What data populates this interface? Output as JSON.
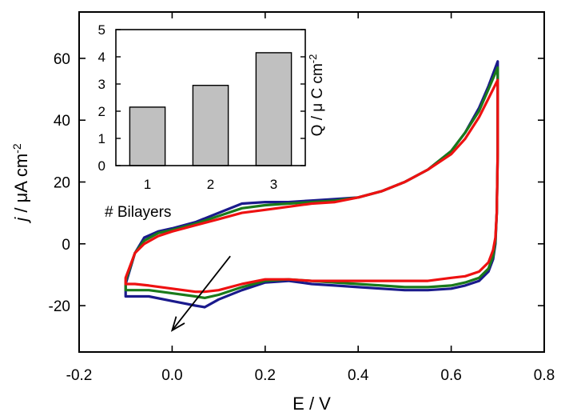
{
  "chart_data": [
    {
      "type": "line",
      "title": "",
      "xlabel": "E / V",
      "ylabel_italic": "j",
      "ylabel_rest": " / μA cm",
      "ylabel_sup": "-2",
      "xlim": [
        -0.2,
        0.8
      ],
      "ylim": [
        -35,
        75
      ],
      "xticks": [
        "-0.2",
        "0.0",
        "0.2",
        "0.4",
        "0.6",
        "0.8"
      ],
      "yticks": [
        "-20",
        "0",
        "20",
        "40",
        "60"
      ],
      "xtick_values": [
        -0.2,
        0.0,
        0.2,
        0.4,
        0.6,
        0.8
      ],
      "ytick_values": [
        -20,
        0,
        20,
        40,
        60
      ],
      "grid": false,
      "colors": {
        "series1": "#1a1a8c",
        "series2": "#1a7a1a",
        "series3": "#ee1111"
      },
      "series": [
        {
          "color": "#1a1a8c",
          "anodic": [
            [
              -0.1,
              -13
            ],
            [
              -0.08,
              -3
            ],
            [
              -0.06,
              2
            ],
            [
              -0.03,
              4
            ],
            [
              0.0,
              5
            ],
            [
              0.05,
              7
            ],
            [
              0.1,
              10
            ],
            [
              0.15,
              13
            ],
            [
              0.2,
              13.5
            ],
            [
              0.25,
              13.5
            ],
            [
              0.3,
              14
            ],
            [
              0.35,
              14.5
            ],
            [
              0.4,
              15
            ],
            [
              0.45,
              17
            ],
            [
              0.5,
              20
            ],
            [
              0.55,
              24
            ],
            [
              0.6,
              30
            ],
            [
              0.63,
              36
            ],
            [
              0.66,
              44
            ],
            [
              0.68,
              51
            ],
            [
              0.7,
              59
            ]
          ],
          "cathodic": [
            [
              0.7,
              59
            ],
            [
              0.7,
              30
            ],
            [
              0.698,
              10
            ],
            [
              0.695,
              0
            ],
            [
              0.69,
              -5
            ],
            [
              0.68,
              -9
            ],
            [
              0.66,
              -12
            ],
            [
              0.63,
              -13.5
            ],
            [
              0.6,
              -14.5
            ],
            [
              0.55,
              -15
            ],
            [
              0.5,
              -15
            ],
            [
              0.45,
              -14.5
            ],
            [
              0.4,
              -14
            ],
            [
              0.35,
              -13.5
            ],
            [
              0.3,
              -13
            ],
            [
              0.25,
              -12
            ],
            [
              0.2,
              -12.5
            ],
            [
              0.15,
              -15
            ],
            [
              0.1,
              -18
            ],
            [
              0.07,
              -20.5
            ],
            [
              0.05,
              -20
            ],
            [
              0.0,
              -18.5
            ],
            [
              -0.05,
              -17
            ],
            [
              -0.08,
              -17
            ],
            [
              -0.1,
              -17
            ]
          ]
        },
        {
          "color": "#1a7a1a",
          "anodic": [
            [
              -0.1,
              -12
            ],
            [
              -0.08,
              -3
            ],
            [
              -0.06,
              1
            ],
            [
              -0.03,
              3.5
            ],
            [
              0.0,
              4.5
            ],
            [
              0.05,
              6.5
            ],
            [
              0.1,
              9
            ],
            [
              0.15,
              11.5
            ],
            [
              0.2,
              12.5
            ],
            [
              0.25,
              13
            ],
            [
              0.3,
              13.5
            ],
            [
              0.35,
              14
            ],
            [
              0.4,
              15
            ],
            [
              0.45,
              17
            ],
            [
              0.5,
              20
            ],
            [
              0.55,
              24
            ],
            [
              0.6,
              30
            ],
            [
              0.63,
              36
            ],
            [
              0.66,
              43
            ],
            [
              0.68,
              50
            ],
            [
              0.7,
              57
            ]
          ],
          "cathodic": [
            [
              0.7,
              57
            ],
            [
              0.7,
              30
            ],
            [
              0.698,
              10
            ],
            [
              0.695,
              1
            ],
            [
              0.69,
              -4
            ],
            [
              0.68,
              -8
            ],
            [
              0.66,
              -11
            ],
            [
              0.63,
              -12.5
            ],
            [
              0.6,
              -13.5
            ],
            [
              0.55,
              -14
            ],
            [
              0.5,
              -14
            ],
            [
              0.45,
              -13.5
            ],
            [
              0.4,
              -13
            ],
            [
              0.35,
              -12.5
            ],
            [
              0.3,
              -12
            ],
            [
              0.25,
              -11.5
            ],
            [
              0.2,
              -12
            ],
            [
              0.15,
              -14
            ],
            [
              0.1,
              -16.5
            ],
            [
              0.07,
              -17.5
            ],
            [
              0.05,
              -17
            ],
            [
              0.0,
              -16
            ],
            [
              -0.05,
              -15
            ],
            [
              -0.08,
              -15
            ],
            [
              -0.1,
              -15
            ]
          ]
        },
        {
          "color": "#ee1111",
          "anodic": [
            [
              -0.1,
              -11
            ],
            [
              -0.08,
              -3
            ],
            [
              -0.06,
              0
            ],
            [
              -0.03,
              2.5
            ],
            [
              0.0,
              4
            ],
            [
              0.05,
              6
            ],
            [
              0.1,
              8
            ],
            [
              0.15,
              10
            ],
            [
              0.2,
              11
            ],
            [
              0.25,
              12
            ],
            [
              0.3,
              13
            ],
            [
              0.35,
              13.5
            ],
            [
              0.4,
              15
            ],
            [
              0.45,
              17
            ],
            [
              0.5,
              20
            ],
            [
              0.55,
              24
            ],
            [
              0.6,
              29
            ],
            [
              0.63,
              34
            ],
            [
              0.66,
              41
            ],
            [
              0.68,
              47
            ],
            [
              0.7,
              53
            ]
          ],
          "cathodic": [
            [
              0.7,
              53
            ],
            [
              0.7,
              30
            ],
            [
              0.698,
              10
            ],
            [
              0.695,
              2
            ],
            [
              0.69,
              -2
            ],
            [
              0.68,
              -6
            ],
            [
              0.66,
              -9
            ],
            [
              0.63,
              -10.5
            ],
            [
              0.6,
              -11
            ],
            [
              0.55,
              -12
            ],
            [
              0.5,
              -12
            ],
            [
              0.45,
              -12
            ],
            [
              0.4,
              -12
            ],
            [
              0.35,
              -12
            ],
            [
              0.3,
              -12
            ],
            [
              0.25,
              -11.5
            ],
            [
              0.2,
              -11.5
            ],
            [
              0.15,
              -13
            ],
            [
              0.1,
              -15
            ],
            [
              0.07,
              -15.5
            ],
            [
              0.05,
              -15.5
            ],
            [
              0.0,
              -14.5
            ],
            [
              -0.05,
              -13.5
            ],
            [
              -0.08,
              -13
            ],
            [
              -0.1,
              -13
            ]
          ]
        }
      ],
      "arrow": {
        "from": [
          0.125,
          -4
        ],
        "to": [
          0.0,
          -28
        ]
      }
    },
    {
      "type": "bar",
      "title": "",
      "xlabel": "# Bilayers",
      "ylabel": "Q / μ C cm",
      "ylabel_sup": "-2",
      "categories": [
        "1",
        "2",
        "3"
      ],
      "values": [
        2.15,
        2.95,
        4.15
      ],
      "ylim": [
        0,
        5
      ],
      "yticks": [
        "0",
        "1",
        "2",
        "3",
        "4",
        "5"
      ],
      "ytick_values": [
        0,
        1,
        2,
        3,
        4,
        5
      ],
      "bar_color": "#c0c0c0",
      "grid": false
    }
  ]
}
